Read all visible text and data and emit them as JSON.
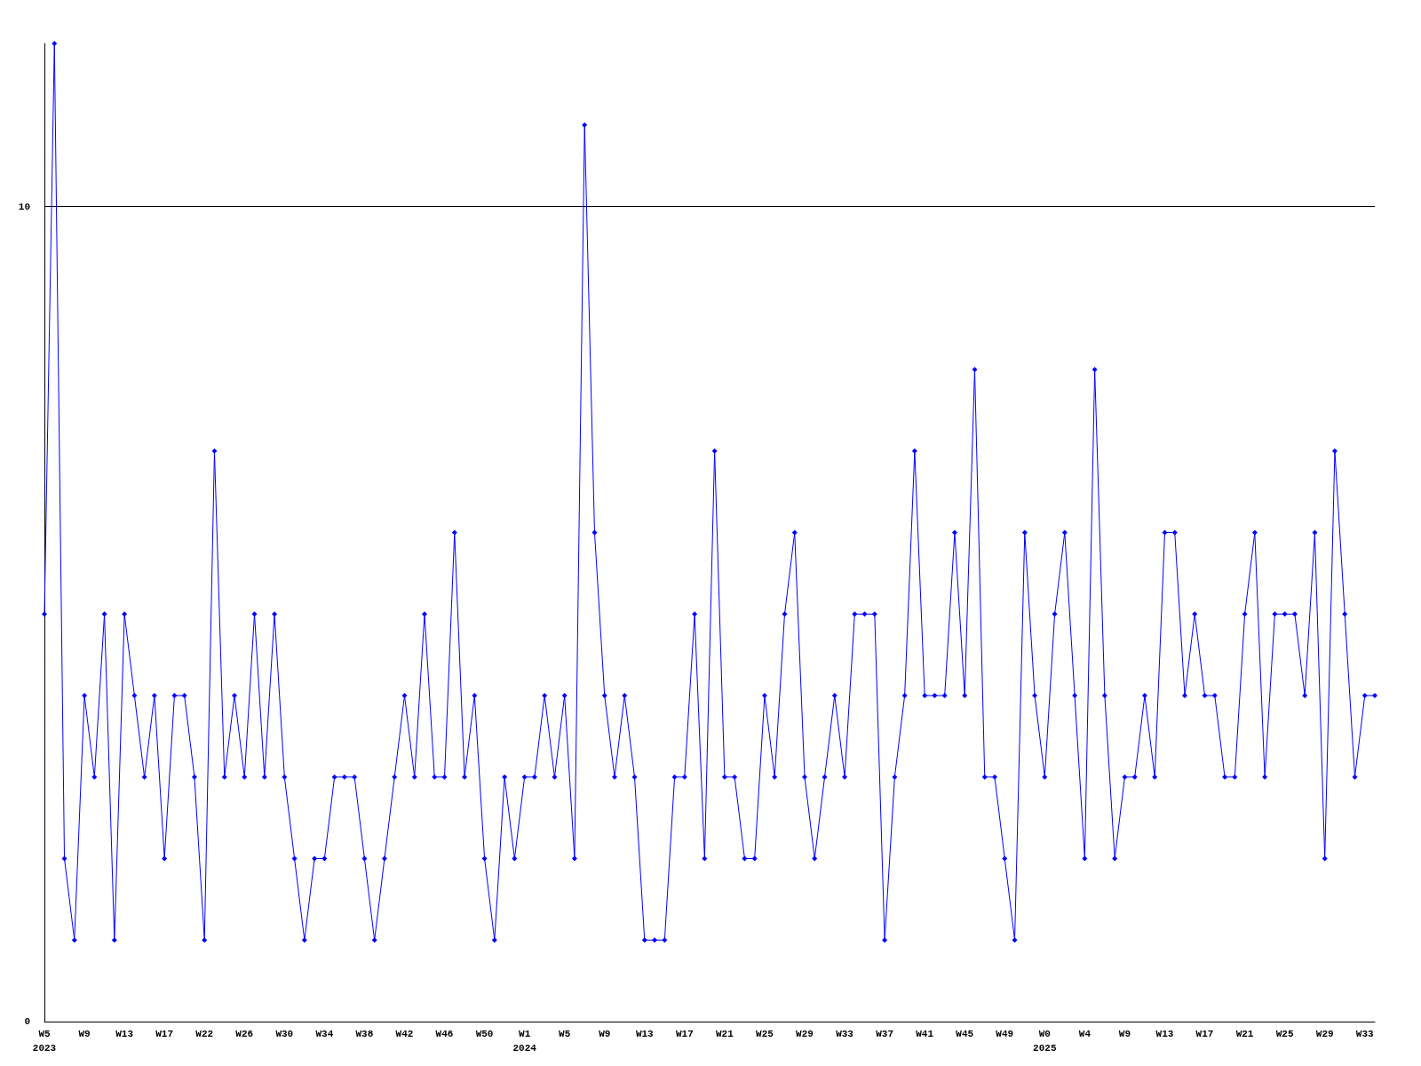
{
  "chart_data": {
    "type": "line",
    "categories": [
      "W5\n2023",
      null,
      null,
      null,
      "W9",
      null,
      null,
      null,
      "W13",
      null,
      null,
      null,
      "W17",
      null,
      null,
      null,
      "W22",
      null,
      null,
      null,
      "W26",
      null,
      null,
      null,
      "W30",
      null,
      null,
      null,
      "W34",
      null,
      null,
      null,
      "W38",
      null,
      null,
      null,
      "W42",
      null,
      null,
      null,
      "W46",
      null,
      null,
      null,
      "W50",
      null,
      null,
      null,
      "W1\n2024",
      null,
      null,
      null,
      "W5",
      null,
      null,
      null,
      "W9",
      null,
      null,
      null,
      "W13",
      null,
      null,
      null,
      "W17",
      null,
      null,
      null,
      "W21",
      null,
      null,
      null,
      "W25",
      null,
      null,
      null,
      "W29",
      null,
      null,
      null,
      "W33",
      null,
      null,
      null,
      "W37",
      null,
      null,
      null,
      "W41",
      null,
      null,
      null,
      "W45",
      null,
      null,
      null,
      "W49",
      null,
      null,
      null,
      "W0\n2025",
      null,
      null,
      null,
      "W4",
      null,
      null,
      null,
      "W9",
      null,
      null,
      null,
      "W13",
      null,
      null,
      null,
      "W17",
      null,
      null,
      null,
      "W21",
      null,
      null,
      null,
      "W25",
      null,
      null,
      null,
      "W29",
      null,
      null,
      null,
      "W33",
      null
    ],
    "values": [
      5,
      12,
      2,
      1,
      4,
      3,
      5,
      1,
      5,
      4,
      3,
      4,
      2,
      4,
      4,
      3,
      1,
      7,
      3,
      4,
      3,
      5,
      3,
      5,
      3,
      2,
      1,
      2,
      2,
      3,
      3,
      3,
      2,
      1,
      2,
      3,
      4,
      3,
      5,
      3,
      3,
      6,
      3,
      4,
      2,
      1,
      3,
      2,
      3,
      3,
      4,
      3,
      4,
      2,
      11,
      6,
      4,
      3,
      4,
      3,
      1,
      1,
      1,
      3,
      3,
      5,
      2,
      7,
      3,
      3,
      2,
      2,
      4,
      3,
      5,
      6,
      3,
      2,
      3,
      4,
      3,
      5,
      5,
      5,
      1,
      3,
      4,
      7,
      4,
      4,
      4,
      6,
      4,
      8,
      3,
      3,
      2,
      1,
      6,
      4,
      3,
      5,
      6,
      4,
      2,
      8,
      4,
      2,
      3,
      3,
      4,
      3,
      6,
      6,
      4,
      5,
      4,
      4,
      3,
      3,
      5,
      6,
      3,
      5,
      5,
      5,
      4,
      6,
      2,
      7,
      5,
      3,
      4,
      4
    ],
    "color": "#0000ff",
    "marker": "diamond",
    "ylim": [
      0,
      12
    ],
    "yticks": [
      0,
      10
    ],
    "grid": "y"
  }
}
